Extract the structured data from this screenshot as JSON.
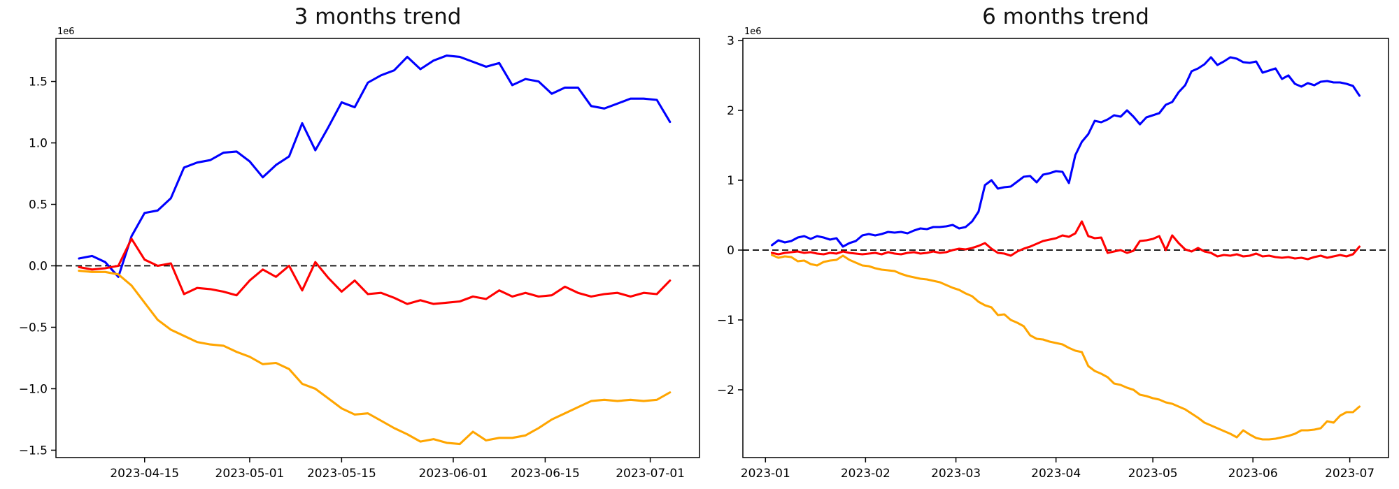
{
  "page": {
    "background": "#ffffff"
  },
  "chart_data": [
    {
      "type": "line",
      "title": "3 months trend",
      "offset_text": "1e6",
      "y_scale_note": "y values in millions (multiply by 1e6)",
      "x0_date": "2023-04-05",
      "xlim_days": [
        -3.5,
        94.5
      ],
      "ylim": [
        -1.56,
        1.85
      ],
      "grid": false,
      "legend": null,
      "zero_line": {
        "style": "dashed",
        "color": "#000000",
        "y": 0
      },
      "yticks": [
        {
          "v": -1.5,
          "label": "−1.5"
        },
        {
          "v": -1.0,
          "label": "−1.0"
        },
        {
          "v": -0.5,
          "label": "−0.5"
        },
        {
          "v": 0.0,
          "label": "0.0"
        },
        {
          "v": 0.5,
          "label": "0.5"
        },
        {
          "v": 1.0,
          "label": "1.0"
        },
        {
          "v": 1.5,
          "label": "1.5"
        }
      ],
      "xticks": [
        {
          "d": 10,
          "label": "2023-04-15"
        },
        {
          "d": 26,
          "label": "2023-05-01"
        },
        {
          "d": 40,
          "label": "2023-05-15"
        },
        {
          "d": 57,
          "label": "2023-06-01"
        },
        {
          "d": 71,
          "label": "2023-06-15"
        },
        {
          "d": 87,
          "label": "2023-07-01"
        }
      ],
      "x_days": [
        0,
        2,
        4,
        6,
        8,
        10,
        12,
        14,
        16,
        18,
        20,
        22,
        24,
        26,
        28,
        30,
        32,
        34,
        36,
        38,
        40,
        42,
        44,
        46,
        48,
        50,
        52,
        54,
        56,
        58,
        60,
        62,
        64,
        66,
        68,
        70,
        72,
        74,
        76,
        78,
        80,
        82,
        84,
        86,
        88,
        90
      ],
      "series": [
        {
          "name": "blue",
          "color": "#0000ff",
          "y": [
            0.06,
            0.08,
            0.03,
            -0.09,
            0.24,
            0.43,
            0.45,
            0.55,
            0.8,
            0.84,
            0.86,
            0.92,
            0.93,
            0.85,
            0.72,
            0.82,
            0.89,
            1.16,
            0.94,
            1.13,
            1.33,
            1.29,
            1.49,
            1.55,
            1.59,
            1.7,
            1.6,
            1.67,
            1.71,
            1.7,
            1.66,
            1.62,
            1.65,
            1.47,
            1.52,
            1.5,
            1.4,
            1.45,
            1.45,
            1.3,
            1.28,
            1.32,
            1.36,
            1.36,
            1.35,
            1.17
          ]
        },
        {
          "name": "red",
          "color": "#ff0000",
          "y": [
            -0.01,
            -0.03,
            -0.02,
            0.0,
            0.22,
            0.05,
            0.0,
            0.02,
            -0.23,
            -0.18,
            -0.19,
            -0.21,
            -0.24,
            -0.12,
            -0.03,
            -0.09,
            0.0,
            -0.2,
            0.03,
            -0.1,
            -0.21,
            -0.12,
            -0.23,
            -0.22,
            -0.26,
            -0.31,
            -0.28,
            -0.31,
            -0.3,
            -0.29,
            -0.25,
            -0.27,
            -0.2,
            -0.25,
            -0.22,
            -0.25,
            -0.24,
            -0.17,
            -0.22,
            -0.25,
            -0.23,
            -0.22,
            -0.25,
            -0.22,
            -0.23,
            -0.12
          ]
        },
        {
          "name": "orange",
          "color": "#ffa500",
          "y": [
            -0.04,
            -0.05,
            -0.05,
            -0.07,
            -0.16,
            -0.3,
            -0.44,
            -0.52,
            -0.57,
            -0.62,
            -0.64,
            -0.65,
            -0.7,
            -0.74,
            -0.8,
            -0.79,
            -0.84,
            -0.96,
            -1.0,
            -1.08,
            -1.16,
            -1.21,
            -1.2,
            -1.26,
            -1.32,
            -1.37,
            -1.43,
            -1.41,
            -1.44,
            -1.45,
            -1.35,
            -1.42,
            -1.4,
            -1.4,
            -1.38,
            -1.32,
            -1.25,
            -1.2,
            -1.15,
            -1.1,
            -1.09,
            -1.1,
            -1.09,
            -1.1,
            -1.09,
            -1.03
          ]
        }
      ]
    },
    {
      "type": "line",
      "title": "6 months trend",
      "offset_text": "1e6",
      "y_scale_note": "y values in millions (multiply by 1e6)",
      "x0_date": "2023-01-03",
      "xlim_days": [
        -9,
        191
      ],
      "ylim": [
        -2.97,
        3.03
      ],
      "grid": false,
      "legend": null,
      "zero_line": {
        "style": "dashed",
        "color": "#000000",
        "y": 0
      },
      "yticks": [
        {
          "v": -2,
          "label": "−2"
        },
        {
          "v": -1,
          "label": "−1"
        },
        {
          "v": 0,
          "label": "0"
        },
        {
          "v": 1,
          "label": "1"
        },
        {
          "v": 2,
          "label": "2"
        },
        {
          "v": 3,
          "label": "3"
        }
      ],
      "xticks": [
        {
          "d": -2,
          "label": "2023-01"
        },
        {
          "d": 29,
          "label": "2023-02"
        },
        {
          "d": 57,
          "label": "2023-03"
        },
        {
          "d": 88,
          "label": "2023-04"
        },
        {
          "d": 118,
          "label": "2023-05"
        },
        {
          "d": 149,
          "label": "2023-06"
        },
        {
          "d": 179,
          "label": "2023-07"
        }
      ],
      "x_days": [
        0,
        2,
        4,
        6,
        8,
        10,
        12,
        14,
        16,
        18,
        20,
        22,
        24,
        26,
        28,
        30,
        32,
        34,
        36,
        38,
        40,
        42,
        44,
        46,
        48,
        50,
        52,
        54,
        56,
        58,
        60,
        62,
        64,
        66,
        68,
        70,
        72,
        74,
        76,
        78,
        80,
        82,
        84,
        86,
        88,
        90,
        92,
        94,
        96,
        98,
        100,
        102,
        104,
        106,
        108,
        110,
        112,
        114,
        116,
        118,
        120,
        122,
        124,
        126,
        128,
        130,
        132,
        134,
        136,
        138,
        140,
        142,
        144,
        146,
        148,
        150,
        152,
        154,
        156,
        158,
        160,
        162,
        164,
        166,
        168,
        170,
        172,
        174,
        176,
        178,
        180,
        182
      ],
      "series": [
        {
          "name": "blue",
          "color": "#0000ff",
          "y": [
            0.07,
            0.14,
            0.11,
            0.13,
            0.18,
            0.2,
            0.16,
            0.2,
            0.18,
            0.15,
            0.17,
            0.05,
            0.1,
            0.13,
            0.21,
            0.23,
            0.21,
            0.23,
            0.26,
            0.25,
            0.26,
            0.24,
            0.28,
            0.31,
            0.3,
            0.33,
            0.33,
            0.34,
            0.36,
            0.31,
            0.33,
            0.41,
            0.55,
            0.93,
            1.0,
            0.88,
            0.9,
            0.91,
            0.98,
            1.05,
            1.06,
            0.97,
            1.08,
            1.1,
            1.13,
            1.12,
            0.96,
            1.36,
            1.55,
            1.66,
            1.85,
            1.83,
            1.87,
            1.93,
            1.91,
            2.0,
            1.91,
            1.8,
            1.9,
            1.93,
            1.96,
            2.08,
            2.12,
            2.26,
            2.36,
            2.56,
            2.6,
            2.66,
            2.76,
            2.65,
            2.7,
            2.76,
            2.74,
            2.69,
            2.68,
            2.7,
            2.54,
            2.57,
            2.6,
            2.45,
            2.5,
            2.38,
            2.34,
            2.39,
            2.36,
            2.41,
            2.42,
            2.4,
            2.4,
            2.38,
            2.35,
            2.21
          ]
        },
        {
          "name": "red",
          "color": "#ff0000",
          "y": [
            -0.04,
            -0.06,
            -0.04,
            -0.03,
            -0.02,
            -0.04,
            -0.03,
            -0.05,
            -0.06,
            -0.04,
            -0.05,
            -0.02,
            -0.04,
            -0.05,
            -0.06,
            -0.05,
            -0.04,
            -0.06,
            -0.03,
            -0.05,
            -0.06,
            -0.04,
            -0.03,
            -0.05,
            -0.04,
            -0.02,
            -0.04,
            -0.03,
            0.0,
            0.02,
            0.01,
            0.03,
            0.06,
            0.1,
            0.02,
            -0.04,
            -0.05,
            -0.08,
            -0.02,
            0.02,
            0.05,
            0.09,
            0.13,
            0.15,
            0.17,
            0.21,
            0.19,
            0.24,
            0.41,
            0.2,
            0.17,
            0.18,
            -0.04,
            -0.02,
            0.0,
            -0.04,
            -0.01,
            0.13,
            0.14,
            0.16,
            0.2,
            0.0,
            0.21,
            0.1,
            0.01,
            -0.02,
            0.03,
            -0.02,
            -0.04,
            -0.09,
            -0.07,
            -0.08,
            -0.06,
            -0.09,
            -0.08,
            -0.05,
            -0.09,
            -0.08,
            -0.1,
            -0.11,
            -0.1,
            -0.12,
            -0.11,
            -0.13,
            -0.1,
            -0.08,
            -0.11,
            -0.09,
            -0.07,
            -0.09,
            -0.06,
            0.05
          ]
        },
        {
          "name": "orange",
          "color": "#ffa500",
          "y": [
            -0.07,
            -0.11,
            -0.09,
            -0.1,
            -0.16,
            -0.15,
            -0.2,
            -0.22,
            -0.17,
            -0.15,
            -0.14,
            -0.08,
            -0.14,
            -0.18,
            -0.22,
            -0.23,
            -0.26,
            -0.28,
            -0.29,
            -0.3,
            -0.34,
            -0.37,
            -0.39,
            -0.41,
            -0.42,
            -0.44,
            -0.46,
            -0.5,
            -0.54,
            -0.57,
            -0.62,
            -0.66,
            -0.74,
            -0.79,
            -0.82,
            -0.93,
            -0.92,
            -1.0,
            -1.04,
            -1.09,
            -1.22,
            -1.27,
            -1.28,
            -1.31,
            -1.33,
            -1.35,
            -1.4,
            -1.44,
            -1.46,
            -1.66,
            -1.73,
            -1.77,
            -1.82,
            -1.91,
            -1.93,
            -1.97,
            -2.0,
            -2.07,
            -2.09,
            -2.12,
            -2.14,
            -2.18,
            -2.2,
            -2.24,
            -2.28,
            -2.34,
            -2.4,
            -2.47,
            -2.51,
            -2.55,
            -2.59,
            -2.63,
            -2.68,
            -2.58,
            -2.64,
            -2.69,
            -2.71,
            -2.71,
            -2.7,
            -2.68,
            -2.66,
            -2.63,
            -2.58,
            -2.58,
            -2.57,
            -2.55,
            -2.45,
            -2.47,
            -2.37,
            -2.32,
            -2.32,
            -2.24
          ]
        }
      ]
    }
  ]
}
